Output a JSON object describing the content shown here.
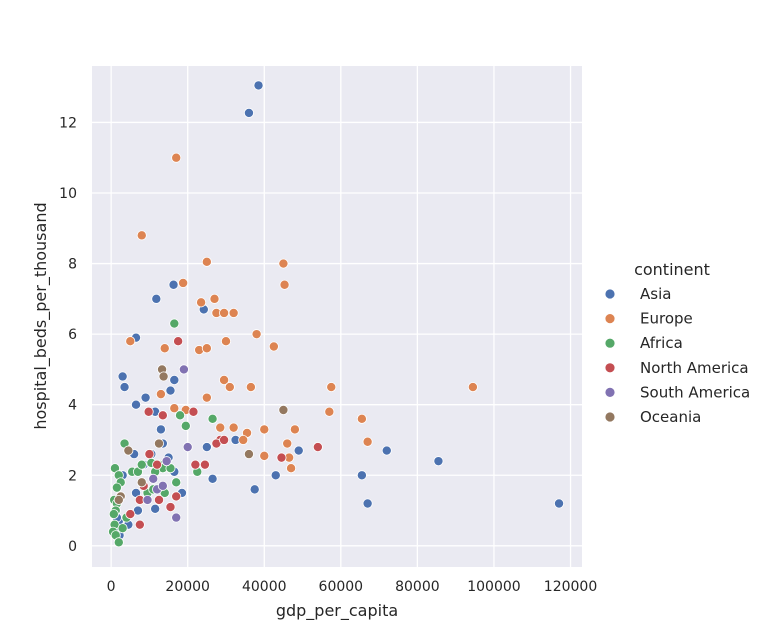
{
  "chart_data": {
    "type": "scatter",
    "title": "",
    "xlabel": "gdp_per_capita",
    "ylabel": "hospital_beds_per_thousand",
    "xlim": [
      -5000,
      123000
    ],
    "ylim": [
      -0.6,
      13.6
    ],
    "xticks": [
      0,
      20000,
      40000,
      60000,
      80000,
      100000,
      120000
    ],
    "yticks": [
      0,
      2,
      4,
      6,
      8,
      10,
      12
    ],
    "grid": true,
    "legend": {
      "title": "continent",
      "placement": "right"
    },
    "series": [
      {
        "name": "Asia",
        "color": "#4c72b0",
        "points": [
          [
            38500,
            13.05
          ],
          [
            36000,
            12.27
          ],
          [
            11800,
            7.0
          ],
          [
            16300,
            7.4
          ],
          [
            24200,
            6.7
          ],
          [
            6500,
            5.9
          ],
          [
            3000,
            4.8
          ],
          [
            3500,
            4.5
          ],
          [
            6500,
            4.0
          ],
          [
            9000,
            4.2
          ],
          [
            15500,
            4.4
          ],
          [
            16500,
            4.7
          ],
          [
            11500,
            3.8
          ],
          [
            13000,
            3.3
          ],
          [
            13500,
            2.9
          ],
          [
            15000,
            2.5
          ],
          [
            16500,
            2.1
          ],
          [
            18500,
            1.5
          ],
          [
            9500,
            1.5
          ],
          [
            11500,
            1.05
          ],
          [
            6500,
            1.5
          ],
          [
            5000,
            0.9
          ],
          [
            4500,
            0.6
          ],
          [
            2000,
            0.7
          ],
          [
            1500,
            0.8
          ],
          [
            1000,
            0.5
          ],
          [
            2200,
            0.3
          ],
          [
            7000,
            1.0
          ],
          [
            8500,
            2.3
          ],
          [
            6000,
            2.6
          ],
          [
            10500,
            2.6
          ],
          [
            26500,
            1.9
          ],
          [
            32500,
            3.0
          ],
          [
            37500,
            1.6
          ],
          [
            43000,
            2.0
          ],
          [
            44500,
            2.5
          ],
          [
            49000,
            2.7
          ],
          [
            65500,
            2.0
          ],
          [
            67000,
            1.2
          ],
          [
            72000,
            2.7
          ],
          [
            85500,
            2.4
          ],
          [
            117000,
            1.2
          ],
          [
            3000,
            2.0
          ],
          [
            25000,
            2.8
          ]
        ]
      },
      {
        "name": "Europe",
        "color": "#dd8452",
        "points": [
          [
            17000,
            11.0
          ],
          [
            8000,
            8.8
          ],
          [
            25000,
            8.05
          ],
          [
            45000,
            8.0
          ],
          [
            45300,
            7.4
          ],
          [
            18800,
            7.45
          ],
          [
            23500,
            6.9
          ],
          [
            27000,
            7.0
          ],
          [
            27500,
            6.6
          ],
          [
            29500,
            6.6
          ],
          [
            32000,
            6.6
          ],
          [
            5000,
            5.8
          ],
          [
            14000,
            5.6
          ],
          [
            23000,
            5.55
          ],
          [
            25000,
            5.6
          ],
          [
            30000,
            5.8
          ],
          [
            38000,
            6.0
          ],
          [
            42500,
            5.65
          ],
          [
            57500,
            4.5
          ],
          [
            94500,
            4.5
          ],
          [
            29500,
            4.7
          ],
          [
            31000,
            4.5
          ],
          [
            36500,
            4.5
          ],
          [
            25000,
            4.2
          ],
          [
            13500,
            3.7
          ],
          [
            16500,
            3.9
          ],
          [
            19500,
            3.85
          ],
          [
            28500,
            3.35
          ],
          [
            32000,
            3.35
          ],
          [
            35500,
            3.2
          ],
          [
            40000,
            3.3
          ],
          [
            48000,
            3.3
          ],
          [
            57000,
            3.8
          ],
          [
            65500,
            3.6
          ],
          [
            67000,
            2.95
          ],
          [
            46000,
            2.9
          ],
          [
            46500,
            2.5
          ],
          [
            47000,
            2.2
          ],
          [
            40000,
            2.55
          ],
          [
            13000,
            4.3
          ],
          [
            34500,
            3.0
          ]
        ]
      },
      {
        "name": "Africa",
        "color": "#55a868",
        "points": [
          [
            16500,
            6.3
          ],
          [
            18000,
            3.7
          ],
          [
            19500,
            3.4
          ],
          [
            26500,
            3.6
          ],
          [
            3500,
            2.9
          ],
          [
            5500,
            2.1
          ],
          [
            7000,
            2.1
          ],
          [
            8000,
            2.3
          ],
          [
            10500,
            2.35
          ],
          [
            12500,
            2.3
          ],
          [
            13500,
            2.2
          ],
          [
            15500,
            2.2
          ],
          [
            17000,
            1.8
          ],
          [
            22500,
            2.1
          ],
          [
            1000,
            2.2
          ],
          [
            2000,
            2.0
          ],
          [
            2500,
            1.8
          ],
          [
            1500,
            1.65
          ],
          [
            800,
            1.3
          ],
          [
            1500,
            1.2
          ],
          [
            1200,
            1.0
          ],
          [
            700,
            0.9
          ],
          [
            900,
            0.6
          ],
          [
            500,
            0.4
          ],
          [
            1200,
            0.3
          ],
          [
            2000,
            0.1
          ],
          [
            3000,
            0.5
          ],
          [
            4000,
            0.8
          ],
          [
            9500,
            1.5
          ],
          [
            11000,
            1.6
          ],
          [
            11500,
            2.1
          ],
          [
            14000,
            1.5
          ]
        ]
      },
      {
        "name": "North America",
        "color": "#c44e52",
        "points": [
          [
            17500,
            5.8
          ],
          [
            9800,
            3.8
          ],
          [
            21500,
            3.8
          ],
          [
            13500,
            3.7
          ],
          [
            28500,
            3.0
          ],
          [
            27500,
            2.9
          ],
          [
            29500,
            3.0
          ],
          [
            22000,
            2.3
          ],
          [
            24500,
            2.3
          ],
          [
            44500,
            2.5
          ],
          [
            54000,
            2.8
          ],
          [
            10000,
            2.6
          ],
          [
            12000,
            2.3
          ],
          [
            8500,
            1.7
          ],
          [
            12500,
            1.3
          ],
          [
            15500,
            1.1
          ],
          [
            17000,
            1.4
          ],
          [
            7500,
            1.3
          ],
          [
            5000,
            0.9
          ],
          [
            7500,
            0.6
          ]
        ]
      },
      {
        "name": "South America",
        "color": "#8172b2",
        "points": [
          [
            19000,
            5.0
          ],
          [
            20000,
            2.8
          ],
          [
            14500,
            2.4
          ],
          [
            12000,
            1.6
          ],
          [
            13500,
            1.7
          ],
          [
            17000,
            0.8
          ],
          [
            9500,
            1.3
          ],
          [
            11000,
            1.9
          ]
        ]
      },
      {
        "name": "Oceania",
        "color": "#937860",
        "points": [
          [
            13300,
            5.0
          ],
          [
            13700,
            4.8
          ],
          [
            45000,
            3.85
          ],
          [
            36000,
            2.6
          ],
          [
            12500,
            2.9
          ],
          [
            4500,
            2.7
          ],
          [
            8000,
            1.8
          ],
          [
            2500,
            1.4
          ],
          [
            2000,
            1.3
          ]
        ]
      }
    ]
  }
}
